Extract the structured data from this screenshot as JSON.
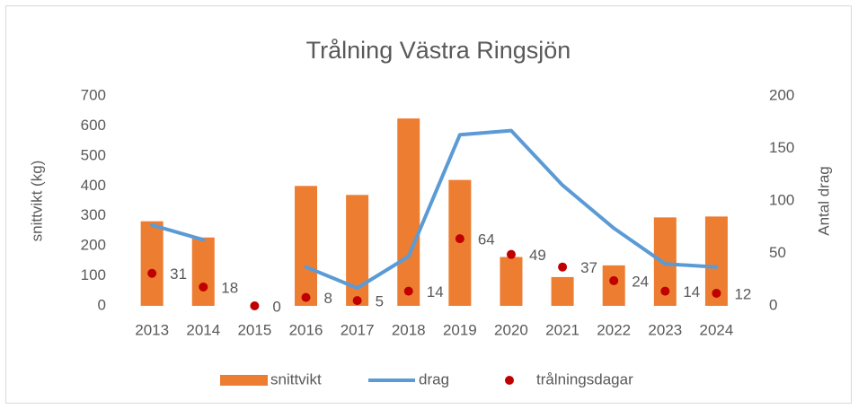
{
  "chart_data": {
    "type": "combo",
    "title": "Trålning Västra Ringsjön",
    "categories": [
      "2013",
      "2014",
      "2015",
      "2016",
      "2017",
      "2018",
      "2019",
      "2020",
      "2021",
      "2022",
      "2023",
      "2024"
    ],
    "ylabel": "snittvikt (kg)",
    "y2label": "Antal drag",
    "ylim": [
      0,
      700
    ],
    "yticks": [
      0,
      100,
      200,
      300,
      400,
      500,
      600,
      700
    ],
    "y2lim": [
      0,
      200
    ],
    "y2ticks": [
      0,
      50,
      100,
      150,
      200
    ],
    "grid": false,
    "legend": "bottom",
    "series": [
      {
        "name": "snittvikt",
        "type": "bar",
        "color": "#ed7d31",
        "values": [
          282,
          228,
          0,
          400,
          370,
          625,
          420,
          163,
          96,
          135,
          295,
          298
        ]
      },
      {
        "name": "drag",
        "type": "line",
        "axis": "y2",
        "color": "#5b9bd5",
        "values": [
          77,
          63,
          null,
          37,
          17,
          47,
          163,
          167,
          115,
          74,
          40,
          37
        ]
      },
      {
        "name": "trålningsdagar",
        "type": "scatter",
        "axis": "y2",
        "color": "#c00000",
        "values": [
          31,
          18,
          0,
          8,
          5,
          14,
          64,
          49,
          37,
          24,
          14,
          12
        ]
      }
    ]
  }
}
